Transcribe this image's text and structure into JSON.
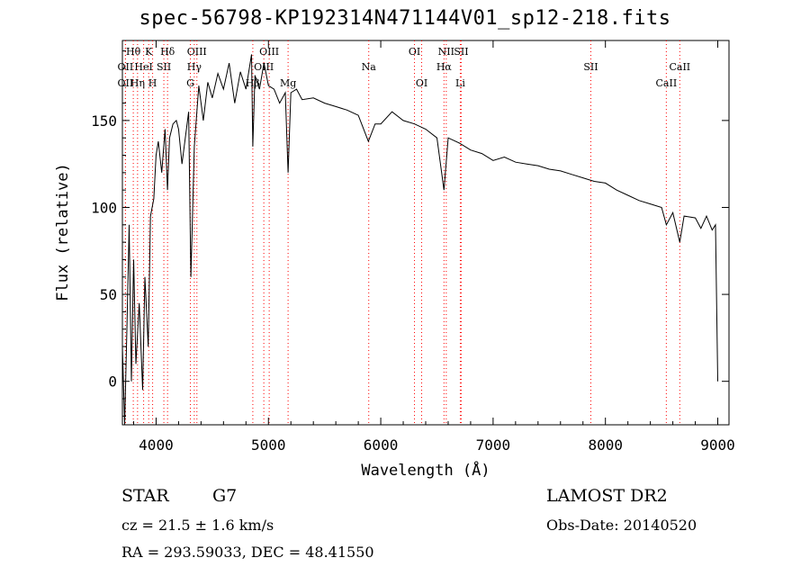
{
  "chart_data": {
    "type": "line",
    "title": "spec-56798-KP192314N471144V01_sp12-218.fits",
    "xlabel": "Wavelength (Å)",
    "ylabel": "Flux (relative)",
    "xlim": [
      3700,
      9100
    ],
    "ylim": [
      -25,
      196
    ],
    "xticks": [
      4000,
      5000,
      6000,
      7000,
      8000,
      9000
    ],
    "yticks": [
      0,
      50,
      100,
      150
    ],
    "line_color": "#000000",
    "marker_color": "#ff0000",
    "series": [
      {
        "x": [
          3700,
          3720,
          3740,
          3760,
          3780,
          3800,
          3820,
          3850,
          3880,
          3900,
          3930,
          3950,
          3980,
          4000,
          4020,
          4050,
          4080,
          4101,
          4120,
          4150,
          4180,
          4200,
          4230,
          4260,
          4290,
          4310,
          4340,
          4380,
          4420,
          4460,
          4500,
          4550,
          4600,
          4650,
          4700,
          4750,
          4800,
          4850,
          4861,
          4880,
          4920,
          4960,
          5000,
          5050,
          5100,
          5150,
          5175,
          5200,
          5250,
          5300,
          5400,
          5500,
          5600,
          5700,
          5800,
          5890,
          5950,
          6000,
          6100,
          6200,
          6300,
          6400,
          6500,
          6563,
          6600,
          6700,
          6800,
          6900,
          7000,
          7100,
          7200,
          7300,
          7400,
          7500,
          7600,
          7700,
          7800,
          7900,
          8000,
          8100,
          8200,
          8300,
          8400,
          8500,
          8542,
          8600,
          8662,
          8700,
          8800,
          8850,
          8900,
          8950,
          8980,
          9000
        ],
        "y": [
          20,
          -25,
          30,
          90,
          0,
          70,
          10,
          45,
          -5,
          60,
          20,
          95,
          105,
          130,
          138,
          120,
          145,
          110,
          140,
          148,
          150,
          145,
          125,
          140,
          155,
          60,
          135,
          170,
          150,
          172,
          163,
          177,
          168,
          183,
          160,
          178,
          168,
          188,
          135,
          176,
          168,
          183,
          170,
          168,
          160,
          166,
          120,
          166,
          168,
          162,
          163,
          160,
          158,
          156,
          153,
          138,
          148,
          148,
          155,
          150,
          148,
          145,
          140,
          110,
          140,
          137,
          133,
          131,
          127,
          129,
          126,
          125,
          124,
          122,
          121,
          119,
          117,
          115,
          114,
          110,
          107,
          104,
          102,
          100,
          90,
          97,
          80,
          95,
          94,
          88,
          95,
          87,
          90,
          0
        ]
      }
    ],
    "lines": [
      {
        "label": "Hθ",
        "x": 3797,
        "row": 1
      },
      {
        "label": "K",
        "x": 3934,
        "row": 1
      },
      {
        "label": "Hδ",
        "x": 4102,
        "row": 1
      },
      {
        "label": "OIII",
        "x": 4363,
        "row": 1
      },
      {
        "label": "OIII",
        "x": 5007,
        "row": 1
      },
      {
        "label": "OI",
        "x": 6300,
        "row": 1
      },
      {
        "label": "NII",
        "x": 6583,
        "row": 1
      },
      {
        "label": "SII",
        "x": 6716,
        "row": 1
      },
      {
        "label": "OII",
        "x": 3727,
        "row": 2
      },
      {
        "label": "HeI",
        "x": 3889,
        "row": 2
      },
      {
        "label": "SII",
        "x": 4069,
        "row": 2
      },
      {
        "label": "Hγ",
        "x": 4340,
        "row": 2
      },
      {
        "label": "OIII",
        "x": 4959,
        "row": 2
      },
      {
        "label": "Na",
        "x": 5893,
        "row": 2
      },
      {
        "label": "Hα",
        "x": 6563,
        "row": 2
      },
      {
        "label": "SII",
        "x": 7870,
        "row": 2
      },
      {
        "label": "CaII",
        "x": 8662,
        "row": 2
      },
      {
        "label": "OII",
        "x": 3727,
        "row": 3
      },
      {
        "label": "Hη",
        "x": 3835,
        "row": 3
      },
      {
        "label": "H",
        "x": 3969,
        "row": 3
      },
      {
        "label": "G",
        "x": 4305,
        "row": 3
      },
      {
        "label": "Hβ",
        "x": 4861,
        "row": 3
      },
      {
        "label": "Mg",
        "x": 5175,
        "row": 3
      },
      {
        "label": "OI",
        "x": 6364,
        "row": 3
      },
      {
        "label": "Li",
        "x": 6708,
        "row": 3
      },
      {
        "label": "CaII",
        "x": 8542,
        "row": 3
      }
    ]
  },
  "footer": {
    "object_class": "STAR",
    "subclass": "G7",
    "survey": "LAMOST DR2",
    "redshift": "cz = 21.5 ± 1.6 km/s",
    "obs_date": "Obs-Date: 20140520",
    "coords": "RA = 293.59033, DEC =  48.41550"
  }
}
